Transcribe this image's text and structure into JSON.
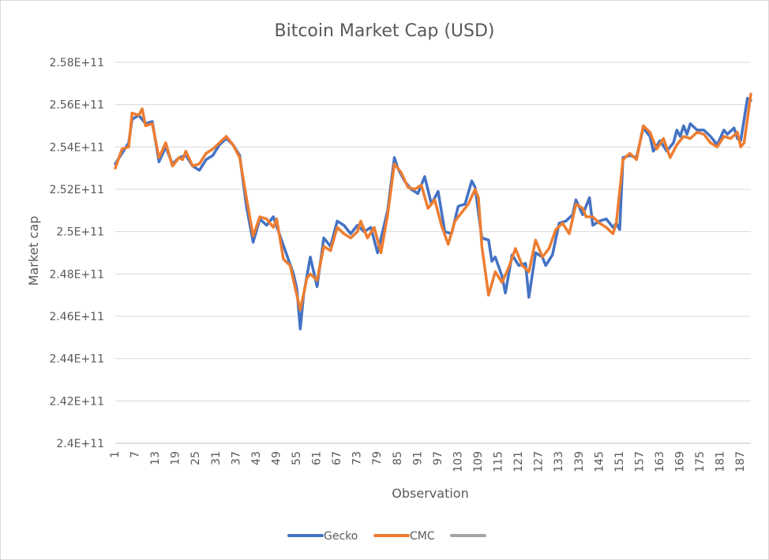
{
  "chart_data": {
    "type": "line",
    "title": "Bitcoin Market Cap (USD)",
    "xlabel": "Observation",
    "ylabel": "Market cap",
    "ylim": [
      240000000000,
      258000000000
    ],
    "y_ticks": [
      "2.4E+11",
      "2.42E+11",
      "2.44E+11",
      "2.46E+11",
      "2.48E+11",
      "2.5E+11",
      "2.52E+11",
      "2.54E+11",
      "2.56E+11",
      "2.58E+11"
    ],
    "x_ticks": [
      "1",
      "7",
      "13",
      "19",
      "25",
      "31",
      "37",
      "43",
      "49",
      "55",
      "61",
      "67",
      "73",
      "79",
      "85",
      "91",
      "97",
      "103",
      "109",
      "115",
      "121",
      "127",
      "133",
      "139",
      "145",
      "151",
      "157",
      "163",
      "169",
      "175",
      "181",
      "187"
    ],
    "x_range": [
      1,
      190
    ],
    "grid": "horizontal",
    "legend_position": "bottom",
    "series": [
      {
        "name": "Gecko",
        "color": "#4472C4",
        "points": [
          [
            1,
            253200000000.0
          ],
          [
            3,
            253700000000.0
          ],
          [
            5,
            254200000000.0
          ],
          [
            6,
            255300000000.0
          ],
          [
            8,
            255500000000.0
          ],
          [
            10,
            255100000000.0
          ],
          [
            12,
            255200000000.0
          ],
          [
            14,
            253300000000.0
          ],
          [
            16,
            254000000000.0
          ],
          [
            18,
            253200000000.0
          ],
          [
            20,
            253500000000.0
          ],
          [
            22,
            253600000000.0
          ],
          [
            24,
            253100000000.0
          ],
          [
            26,
            252900000000.0
          ],
          [
            28,
            253400000000.0
          ],
          [
            30,
            253600000000.0
          ],
          [
            32,
            254100000000.0
          ],
          [
            34,
            254400000000.0
          ],
          [
            36,
            254100000000.0
          ],
          [
            38,
            253600000000.0
          ],
          [
            40,
            251200000000.0
          ],
          [
            42,
            249500000000.0
          ],
          [
            44,
            250600000000.0
          ],
          [
            46,
            250300000000.0
          ],
          [
            48,
            250700000000.0
          ],
          [
            50,
            249800000000.0
          ],
          [
            52,
            248900000000.0
          ],
          [
            54,
            248000000000.0
          ],
          [
            55,
            247300000000.0
          ],
          [
            56,
            245400000000.0
          ],
          [
            57,
            247000000000.0
          ],
          [
            59,
            248800000000.0
          ],
          [
            61,
            247400000000.0
          ],
          [
            63,
            249700000000.0
          ],
          [
            65,
            249300000000.0
          ],
          [
            67,
            250500000000.0
          ],
          [
            69,
            250300000000.0
          ],
          [
            71,
            249900000000.0
          ],
          [
            73,
            250300000000.0
          ],
          [
            75,
            250000000000.0
          ],
          [
            77,
            250200000000.0
          ],
          [
            79,
            249000000000.0
          ],
          [
            82,
            251000000000.0
          ],
          [
            84,
            253500000000.0
          ],
          [
            85,
            253000000000.0
          ],
          [
            87,
            252400000000.0
          ],
          [
            89,
            252000000000.0
          ],
          [
            91,
            251800000000.0
          ],
          [
            93,
            252600000000.0
          ],
          [
            95,
            251300000000.0
          ],
          [
            97,
            251900000000.0
          ],
          [
            99,
            250000000000.0
          ],
          [
            101,
            249900000000.0
          ],
          [
            103,
            251200000000.0
          ],
          [
            105,
            251300000000.0
          ],
          [
            107,
            252400000000.0
          ],
          [
            108,
            252100000000.0
          ],
          [
            110,
            249700000000.0
          ],
          [
            112,
            249600000000.0
          ],
          [
            113,
            248600000000.0
          ],
          [
            114,
            248800000000.0
          ],
          [
            116,
            247900000000.0
          ],
          [
            117,
            247100000000.0
          ],
          [
            119,
            248900000000.0
          ],
          [
            121,
            248400000000.0
          ],
          [
            123,
            248500000000.0
          ],
          [
            124,
            246900000000.0
          ],
          [
            126,
            249000000000.0
          ],
          [
            128,
            248800000000.0
          ],
          [
            129,
            248400000000.0
          ],
          [
            131,
            248900000000.0
          ],
          [
            133,
            250400000000.0
          ],
          [
            135,
            250500000000.0
          ],
          [
            137,
            250800000000.0
          ],
          [
            138,
            251500000000.0
          ],
          [
            140,
            250800000000.0
          ],
          [
            142,
            251600000000.0
          ],
          [
            143,
            250300000000.0
          ],
          [
            145,
            250500000000.0
          ],
          [
            147,
            250600000000.0
          ],
          [
            149,
            250200000000.0
          ],
          [
            150,
            250400000000.0
          ],
          [
            151,
            250100000000.0
          ],
          [
            152,
            253500000000.0
          ],
          [
            154,
            253600000000.0
          ],
          [
            156,
            253500000000.0
          ],
          [
            158,
            254900000000.0
          ],
          [
            160,
            254500000000.0
          ],
          [
            161,
            253800000000.0
          ],
          [
            163,
            254300000000.0
          ],
          [
            165,
            253800000000.0
          ],
          [
            167,
            254200000000.0
          ],
          [
            168,
            254800000000.0
          ],
          [
            169,
            254500000000.0
          ],
          [
            170,
            255000000000.0
          ],
          [
            171,
            254600000000.0
          ],
          [
            172,
            255100000000.0
          ],
          [
            174,
            254800000000.0
          ],
          [
            176,
            254800000000.0
          ],
          [
            178,
            254500000000.0
          ],
          [
            180,
            254100000000.0
          ],
          [
            182,
            254800000000.0
          ],
          [
            183,
            254600000000.0
          ],
          [
            185,
            254900000000.0
          ],
          [
            186,
            254400000000.0
          ],
          [
            187,
            254300000000.0
          ],
          [
            189,
            256300000000.0
          ],
          [
            190,
            256200000000.0
          ]
        ]
      },
      {
        "name": "CMC",
        "color": "#ED7D31",
        "points": [
          [
            1,
            253000000000.0
          ],
          [
            3,
            253900000000.0
          ],
          [
            5,
            254000000000.0
          ],
          [
            6,
            255600000000.0
          ],
          [
            8,
            255500000000.0
          ],
          [
            9,
            255800000000.0
          ],
          [
            10,
            255000000000.0
          ],
          [
            12,
            255100000000.0
          ],
          [
            14,
            253500000000.0
          ],
          [
            16,
            254200000000.0
          ],
          [
            18,
            253100000000.0
          ],
          [
            20,
            253500000000.0
          ],
          [
            21,
            253400000000.0
          ],
          [
            22,
            253800000000.0
          ],
          [
            24,
            253100000000.0
          ],
          [
            26,
            253200000000.0
          ],
          [
            28,
            253700000000.0
          ],
          [
            30,
            253900000000.0
          ],
          [
            32,
            254200000000.0
          ],
          [
            34,
            254500000000.0
          ],
          [
            36,
            254100000000.0
          ],
          [
            38,
            253500000000.0
          ],
          [
            40,
            251600000000.0
          ],
          [
            42,
            249800000000.0
          ],
          [
            44,
            250700000000.0
          ],
          [
            46,
            250600000000.0
          ],
          [
            48,
            250200000000.0
          ],
          [
            49,
            250600000000.0
          ],
          [
            51,
            248700000000.0
          ],
          [
            53,
            248400000000.0
          ],
          [
            54,
            247700000000.0
          ],
          [
            56,
            246300000000.0
          ],
          [
            58,
            247800000000.0
          ],
          [
            59,
            248000000000.0
          ],
          [
            61,
            247700000000.0
          ],
          [
            63,
            249300000000.0
          ],
          [
            65,
            249100000000.0
          ],
          [
            67,
            250200000000.0
          ],
          [
            69,
            249900000000.0
          ],
          [
            71,
            249700000000.0
          ],
          [
            73,
            250000000000.0
          ],
          [
            74,
            250500000000.0
          ],
          [
            76,
            249700000000.0
          ],
          [
            78,
            250200000000.0
          ],
          [
            80,
            249000000000.0
          ],
          [
            82,
            250800000000.0
          ],
          [
            84,
            253200000000.0
          ],
          [
            86,
            252800000000.0
          ],
          [
            88,
            252100000000.0
          ],
          [
            90,
            252000000000.0
          ],
          [
            92,
            252200000000.0
          ],
          [
            94,
            251100000000.0
          ],
          [
            96,
            251500000000.0
          ],
          [
            98,
            250300000000.0
          ],
          [
            100,
            249400000000.0
          ],
          [
            102,
            250500000000.0
          ],
          [
            104,
            250900000000.0
          ],
          [
            106,
            251300000000.0
          ],
          [
            108,
            252000000000.0
          ],
          [
            109,
            251600000000.0
          ],
          [
            110,
            249300000000.0
          ],
          [
            112,
            247000000000.0
          ],
          [
            114,
            248100000000.0
          ],
          [
            116,
            247600000000.0
          ],
          [
            118,
            248300000000.0
          ],
          [
            120,
            249200000000.0
          ],
          [
            122,
            248400000000.0
          ],
          [
            124,
            248100000000.0
          ],
          [
            126,
            249600000000.0
          ],
          [
            128,
            248800000000.0
          ],
          [
            130,
            249200000000.0
          ],
          [
            132,
            250100000000.0
          ],
          [
            134,
            250400000000.0
          ],
          [
            136,
            249900000000.0
          ],
          [
            138,
            251300000000.0
          ],
          [
            140,
            251100000000.0
          ],
          [
            141,
            250700000000.0
          ],
          [
            143,
            250700000000.0
          ],
          [
            145,
            250400000000.0
          ],
          [
            147,
            250200000000.0
          ],
          [
            149,
            249900000000.0
          ],
          [
            150,
            250400000000.0
          ],
          [
            152,
            253400000000.0
          ],
          [
            154,
            253700000000.0
          ],
          [
            156,
            253400000000.0
          ],
          [
            158,
            255000000000.0
          ],
          [
            160,
            254700000000.0
          ],
          [
            162,
            253900000000.0
          ],
          [
            164,
            254400000000.0
          ],
          [
            166,
            253500000000.0
          ],
          [
            168,
            254100000000.0
          ],
          [
            170,
            254500000000.0
          ],
          [
            172,
            254400000000.0
          ],
          [
            174,
            254700000000.0
          ],
          [
            176,
            254600000000.0
          ],
          [
            178,
            254200000000.0
          ],
          [
            180,
            254000000000.0
          ],
          [
            182,
            254500000000.0
          ],
          [
            184,
            254400000000.0
          ],
          [
            186,
            254700000000.0
          ],
          [
            187,
            254000000000.0
          ],
          [
            188,
            254200000000.0
          ],
          [
            190,
            256500000000.0
          ]
        ]
      },
      {
        "name": "",
        "color": "#A5A5A5",
        "points": []
      }
    ]
  }
}
